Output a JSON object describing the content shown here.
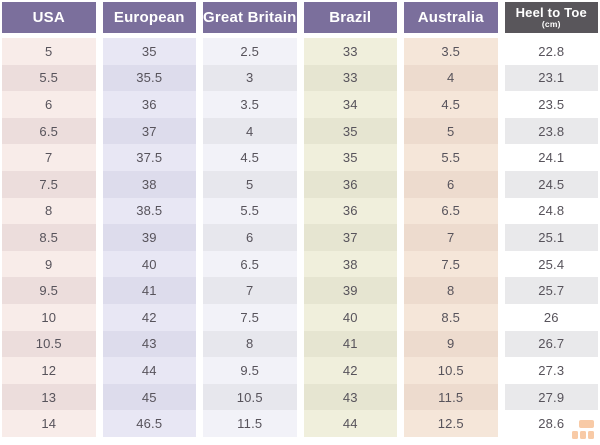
{
  "chart_data": {
    "type": "table",
    "columns": [
      "USA",
      "European",
      "Great Britain",
      "Brazil",
      "Australia",
      "Heel to Toe (cm)"
    ],
    "rows": [
      [
        "5",
        "35",
        "2.5",
        "33",
        "3.5",
        "22.8"
      ],
      [
        "5.5",
        "35.5",
        "3",
        "33",
        "4",
        "23.1"
      ],
      [
        "6",
        "36",
        "3.5",
        "34",
        "4.5",
        "23.5"
      ],
      [
        "6.5",
        "37",
        "4",
        "35",
        "5",
        "23.8"
      ],
      [
        "7",
        "37.5",
        "4.5",
        "35",
        "5.5",
        "24.1"
      ],
      [
        "7.5",
        "38",
        "5",
        "36",
        "6",
        "24.5"
      ],
      [
        "8",
        "38.5",
        "5.5",
        "36",
        "6.5",
        "24.8"
      ],
      [
        "8.5",
        "39",
        "6",
        "37",
        "7",
        "25.1"
      ],
      [
        "9",
        "40",
        "6.5",
        "38",
        "7.5",
        "25.4"
      ],
      [
        "9.5",
        "41",
        "7",
        "39",
        "8",
        "25.7"
      ],
      [
        "10",
        "42",
        "7.5",
        "40",
        "8.5",
        "26"
      ],
      [
        "10.5",
        "43",
        "8",
        "41",
        "9",
        "26.7"
      ],
      [
        "12",
        "44",
        "9.5",
        "42",
        "10.5",
        "27.3"
      ],
      [
        "13",
        "45",
        "10.5",
        "43",
        "11.5",
        "27.9"
      ],
      [
        "14",
        "46.5",
        "11.5",
        "44",
        "12.5",
        "28.6"
      ]
    ]
  },
  "header": {
    "columns": [
      {
        "id": "usa",
        "label": "USA",
        "sublabel": "",
        "bg": "#7b6f9c",
        "row_light": "#f8ece9",
        "row_dark": "#ecdddc"
      },
      {
        "id": "european",
        "label": "European",
        "sublabel": "",
        "bg": "#7b6f9c",
        "row_light": "#e8e7f4",
        "row_dark": "#dddcec"
      },
      {
        "id": "great-britain",
        "label": "Great Britain",
        "sublabel": "",
        "bg": "#7b6f9c",
        "row_light": "#f2f2f8",
        "row_dark": "#e7e7ed"
      },
      {
        "id": "brazil",
        "label": "Brazil",
        "sublabel": "",
        "bg": "#7b6f9c",
        "row_light": "#f0efdc",
        "row_dark": "#e6e5d1"
      },
      {
        "id": "australia",
        "label": "Australia",
        "sublabel": "",
        "bg": "#7b6f9c",
        "row_light": "#f5e6d9",
        "row_dark": "#eddbce"
      },
      {
        "id": "heel-to-toe",
        "label": "Heel to Toe",
        "sublabel": "(cm)",
        "bg": "#59565b",
        "row_light": "#ffffff",
        "row_dark": "#e9e9eb"
      }
    ],
    "text_color": "#ffffff"
  },
  "body": {
    "text_color": "#57535b"
  },
  "watermark": {
    "icon": "grid-logo",
    "color": "#f08c3c"
  }
}
